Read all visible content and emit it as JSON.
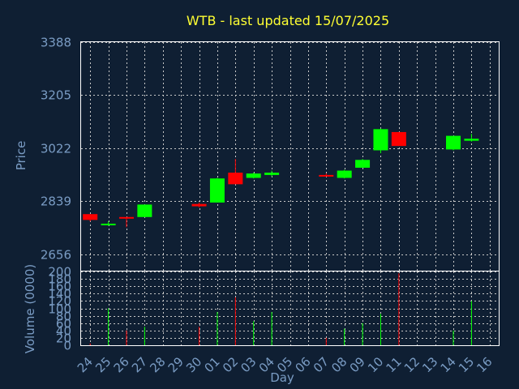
{
  "chart_data": {
    "type": "candlestick",
    "title": "WTB - last updated 15/07/2025",
    "ylabel": "Price",
    "volume_ylabel": "Volume (0000)",
    "xlabel": "Day",
    "price_ylim": [
      2600,
      3388
    ],
    "price_ticks": [
      2656,
      2839,
      3022,
      3205,
      3388
    ],
    "volume_ylim": [
      0,
      200
    ],
    "volume_ticks": [
      0,
      20,
      40,
      60,
      80,
      100,
      120,
      140,
      160,
      180,
      200
    ],
    "days": [
      "24",
      "25",
      "26",
      "27",
      "28",
      "29",
      "30",
      "01",
      "02",
      "03",
      "04",
      "05",
      "06",
      "07",
      "08",
      "09",
      "10",
      "11",
      "12",
      "13",
      "14",
      "15",
      "16"
    ],
    "grid": true,
    "colors": {
      "up": "#00ff00",
      "down": "#ff0000",
      "title": "#ffff33",
      "axis_text": "#7a9cc4",
      "background": "#0f1f33"
    },
    "candles": [
      {
        "day": "24",
        "open": 2795,
        "high": 2795,
        "low": 2770,
        "close": 2775,
        "volume": 5
      },
      {
        "day": "25",
        "open": 2757,
        "high": 2770,
        "low": 2755,
        "close": 2762,
        "volume": 100
      },
      {
        "day": "26",
        "open": 2785,
        "high": 2785,
        "low": 2750,
        "close": 2780,
        "volume": 40
      },
      {
        "day": "27",
        "open": 2785,
        "high": 2828,
        "low": 2785,
        "close": 2828,
        "volume": 50
      },
      {
        "day": "30",
        "open": 2830,
        "high": 2835,
        "low": 2818,
        "close": 2822,
        "volume": 50
      },
      {
        "day": "01",
        "open": 2835,
        "high": 2920,
        "low": 2835,
        "close": 2918,
        "volume": 90
      },
      {
        "day": "02",
        "open": 2938,
        "high": 2985,
        "low": 2898,
        "close": 2898,
        "volume": 130
      },
      {
        "day": "03",
        "open": 2920,
        "high": 2938,
        "low": 2918,
        "close": 2935,
        "volume": 65
      },
      {
        "day": "04",
        "open": 2930,
        "high": 2945,
        "low": 2925,
        "close": 2938,
        "volume": 90
      },
      {
        "day": "07",
        "open": 2930,
        "high": 2935,
        "low": 2925,
        "close": 2928,
        "volume": 20
      },
      {
        "day": "08",
        "open": 2920,
        "high": 2948,
        "low": 2918,
        "close": 2945,
        "volume": 45
      },
      {
        "day": "09",
        "open": 2955,
        "high": 2985,
        "low": 2955,
        "close": 2982,
        "volume": 60
      },
      {
        "day": "10",
        "open": 3015,
        "high": 3090,
        "low": 3005,
        "close": 3088,
        "volume": 85
      },
      {
        "day": "11",
        "open": 3078,
        "high": 3078,
        "low": 3030,
        "close": 3030,
        "volume": 195
      },
      {
        "day": "14",
        "open": 3018,
        "high": 3065,
        "low": 3015,
        "close": 3065,
        "volume": 40
      },
      {
        "day": "15",
        "open": 3048,
        "high": 3072,
        "low": 3045,
        "close": 3055,
        "volume": 120
      }
    ]
  }
}
